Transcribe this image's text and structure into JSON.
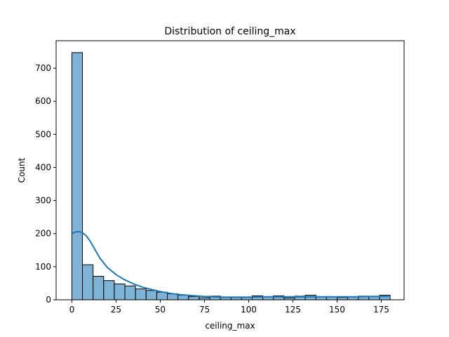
{
  "chart_data": {
    "type": "bar",
    "title": "Distribution of ceiling_max",
    "xlabel": "ceiling_max",
    "ylabel": "Count",
    "xlim": [
      -8.9,
      187.9
    ],
    "ylim": [
      0,
      783
    ],
    "xticks": [
      0,
      25,
      50,
      75,
      100,
      125,
      150,
      175
    ],
    "yticks": [
      0,
      100,
      200,
      300,
      400,
      500,
      600,
      700
    ],
    "grid": false,
    "bar_color": "#7fb3d5",
    "bar_edge_color": "#000000",
    "kde_color": "#1f77b4",
    "bin_edges": [
      0,
      6,
      12,
      18,
      24,
      30,
      36,
      42,
      48,
      54,
      60,
      66,
      72,
      78,
      84,
      90,
      96,
      102,
      108,
      114,
      120,
      126,
      132,
      138,
      144,
      150,
      156,
      162,
      168,
      174,
      180
    ],
    "counts": [
      747,
      106,
      71,
      58,
      48,
      42,
      33,
      28,
      23,
      18,
      14,
      10,
      6,
      11,
      7,
      7,
      7,
      12,
      9,
      12,
      6,
      11,
      14,
      9,
      9,
      7,
      9,
      11,
      10,
      14
    ],
    "kde": {
      "x": [
        0,
        2,
        4,
        6,
        8,
        10,
        12,
        14,
        16,
        20,
        25,
        30,
        35,
        40,
        45,
        50,
        55,
        60,
        65,
        70,
        75,
        80,
        85,
        90,
        100,
        110,
        120,
        130,
        140,
        150,
        160,
        170,
        179
      ],
      "y": [
        200,
        205,
        206,
        203,
        194,
        180,
        162,
        143,
        125,
        98,
        76,
        60,
        48,
        38,
        31,
        25,
        20,
        16,
        14,
        12,
        10,
        9,
        8,
        8,
        8,
        9,
        9,
        9,
        9,
        9,
        9,
        10,
        10
      ]
    }
  }
}
